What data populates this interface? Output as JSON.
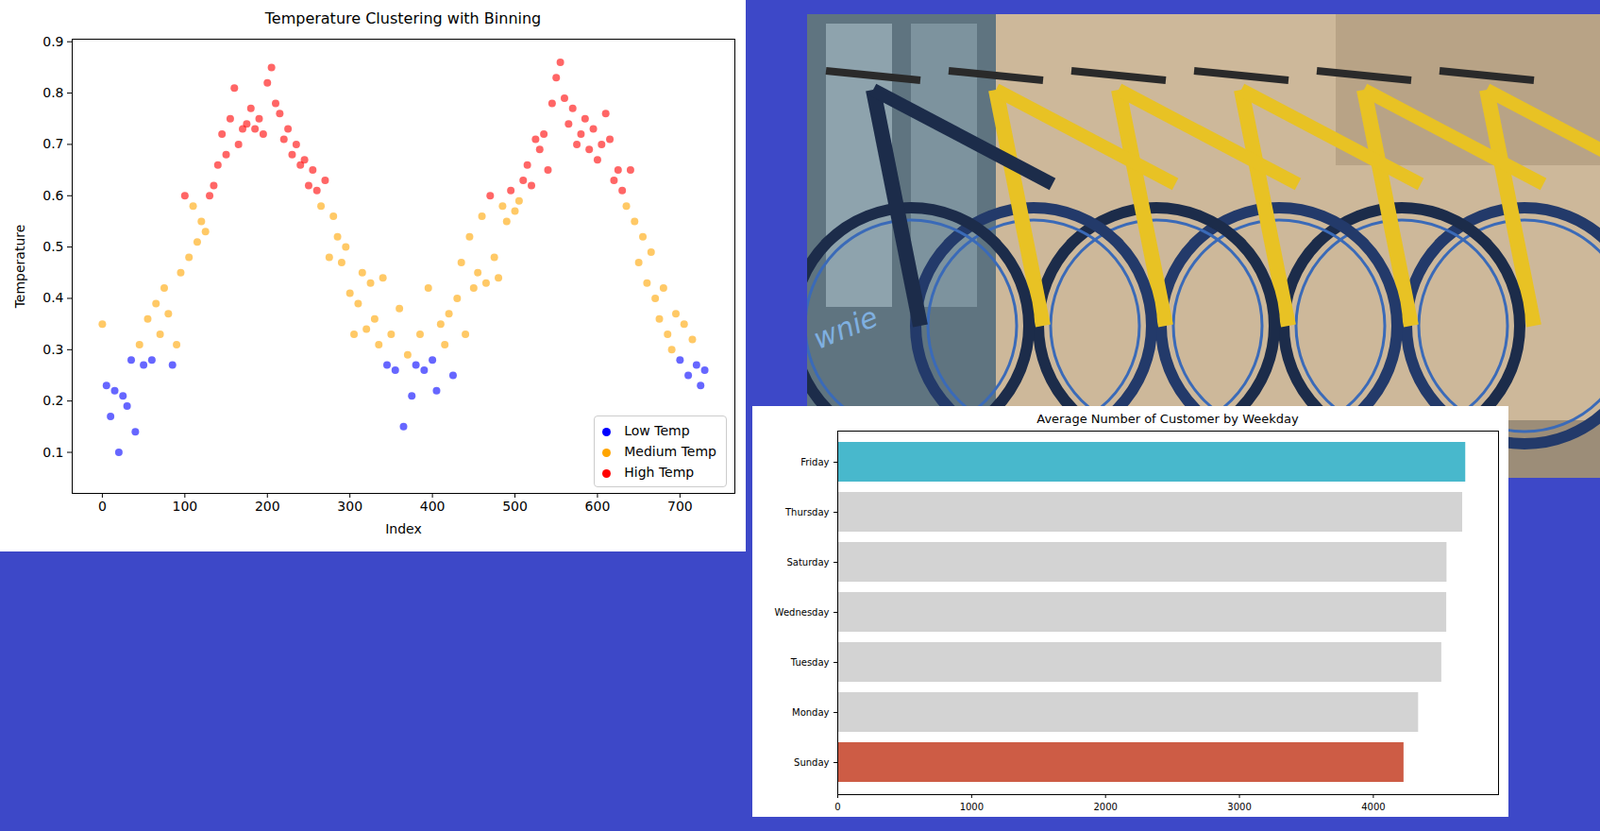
{
  "chart_data": [
    {
      "type": "scatter",
      "title": "Temperature Clustering with Binning",
      "x_label": "Index",
      "y_label": "Temperature",
      "xlim": [
        -36.5,
        766.5
      ],
      "xticks": [
        0,
        100,
        200,
        300,
        400,
        500,
        600,
        700
      ],
      "ylim": [
        0.02,
        0.905
      ],
      "yticks": [
        0.1,
        0.2,
        0.3,
        0.4,
        0.5,
        0.6,
        0.7,
        0.8,
        0.9
      ],
      "legend": "lower right",
      "series": [
        {
          "name": "Low Temp",
          "color": "#0000ff",
          "marker": "circle",
          "x": [
            5,
            10,
            15,
            20,
            25,
            30,
            35,
            40,
            50,
            60,
            85,
            345,
            355,
            365,
            375,
            380,
            390,
            400,
            405,
            425,
            700,
            710,
            720,
            725,
            730
          ],
          "values": [
            0.23,
            0.17,
            0.22,
            0.1,
            0.21,
            0.19,
            0.28,
            0.14,
            0.27,
            0.28,
            0.27,
            0.27,
            0.26,
            0.15,
            0.21,
            0.27,
            0.26,
            0.28,
            0.22,
            0.25,
            0.28,
            0.25,
            0.27,
            0.23,
            0.26
          ]
        },
        {
          "name": "Medium Temp",
          "color": "#ffa500",
          "marker": "circle",
          "x": [
            0,
            45,
            55,
            65,
            70,
            75,
            80,
            90,
            95,
            105,
            110,
            115,
            120,
            125,
            265,
            275,
            280,
            285,
            290,
            295,
            300,
            305,
            310,
            315,
            320,
            325,
            330,
            335,
            340,
            350,
            360,
            370,
            385,
            395,
            410,
            415,
            420,
            430,
            435,
            440,
            445,
            450,
            455,
            460,
            465,
            475,
            480,
            485,
            490,
            500,
            505,
            635,
            645,
            650,
            655,
            660,
            665,
            670,
            675,
            680,
            685,
            690,
            695,
            705,
            715
          ],
          "values": [
            0.35,
            0.31,
            0.36,
            0.39,
            0.33,
            0.42,
            0.37,
            0.31,
            0.45,
            0.48,
            0.58,
            0.51,
            0.55,
            0.53,
            0.58,
            0.48,
            0.56,
            0.52,
            0.47,
            0.5,
            0.41,
            0.33,
            0.39,
            0.45,
            0.34,
            0.43,
            0.36,
            0.31,
            0.44,
            0.33,
            0.38,
            0.29,
            0.33,
            0.42,
            0.35,
            0.31,
            0.37,
            0.4,
            0.47,
            0.33,
            0.52,
            0.42,
            0.45,
            0.56,
            0.43,
            0.48,
            0.44,
            0.58,
            0.55,
            0.57,
            0.59,
            0.58,
            0.55,
            0.47,
            0.52,
            0.43,
            0.49,
            0.4,
            0.36,
            0.42,
            0.33,
            0.3,
            0.37,
            0.35,
            0.32
          ]
        },
        {
          "name": "High Temp",
          "color": "#ff0000",
          "marker": "circle",
          "x": [
            100,
            130,
            135,
            140,
            145,
            150,
            155,
            160,
            165,
            170,
            175,
            180,
            185,
            190,
            195,
            200,
            205,
            210,
            215,
            220,
            225,
            230,
            235,
            240,
            245,
            250,
            255,
            260,
            270,
            470,
            495,
            510,
            515,
            520,
            525,
            530,
            535,
            540,
            545,
            550,
            555,
            560,
            565,
            570,
            575,
            580,
            585,
            590,
            595,
            600,
            605,
            610,
            615,
            620,
            625,
            630,
            640
          ],
          "values": [
            0.6,
            0.6,
            0.62,
            0.66,
            0.72,
            0.68,
            0.75,
            0.81,
            0.7,
            0.73,
            0.74,
            0.77,
            0.73,
            0.75,
            0.72,
            0.82,
            0.85,
            0.78,
            0.76,
            0.71,
            0.73,
            0.68,
            0.7,
            0.66,
            0.67,
            0.62,
            0.65,
            0.61,
            0.63,
            0.6,
            0.61,
            0.63,
            0.66,
            0.62,
            0.71,
            0.69,
            0.72,
            0.65,
            0.78,
            0.83,
            0.86,
            0.79,
            0.74,
            0.77,
            0.7,
            0.72,
            0.75,
            0.69,
            0.73,
            0.67,
            0.7,
            0.76,
            0.71,
            0.63,
            0.65,
            0.61,
            0.65
          ]
        }
      ]
    },
    {
      "type": "bar",
      "orientation": "horizontal",
      "title": "Average Number of Customer by Weekday",
      "categories": [
        "Friday",
        "Thursday",
        "Saturday",
        "Wednesday",
        "Tuesday",
        "Monday",
        "Sunday"
      ],
      "values": [
        4690,
        4667,
        4550,
        4548,
        4511,
        4338,
        4229
      ],
      "colors": [
        "#48b8cc",
        "#d3d3d3",
        "#d3d3d3",
        "#d3d3d3",
        "#d3d3d3",
        "#d3d3d3",
        "#cd5c45"
      ],
      "xlim": [
        0,
        4935
      ],
      "xticks": [
        0,
        1000,
        2000,
        3000,
        4000
      ]
    }
  ],
  "image": {
    "text": "wnie"
  }
}
